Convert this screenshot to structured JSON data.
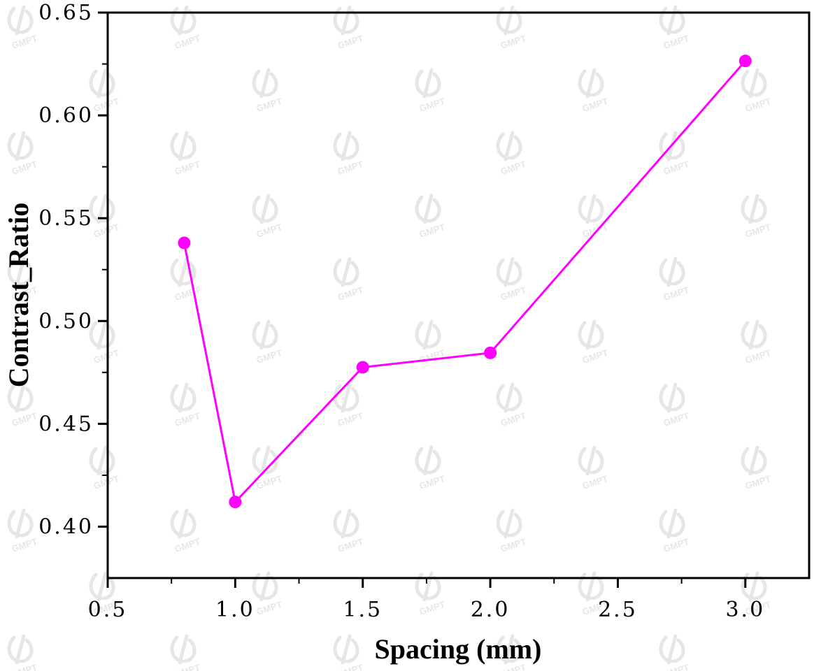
{
  "chart_data": {
    "type": "line",
    "xlabel": "Spacing (mm)",
    "ylabel": "Contrast_Ratio",
    "xlim": [
      0.5,
      3.25
    ],
    "ylim": [
      0.375,
      0.65
    ],
    "x_ticks": [
      "0.5",
      "1.0",
      "1.5",
      "2.0",
      "2.5",
      "3.0"
    ],
    "y_ticks": [
      "0.40",
      "0.45",
      "0.50",
      "0.55",
      "0.60",
      "0.65"
    ],
    "grid": false,
    "series": [
      {
        "color": "#ff00ff",
        "marker": "circle",
        "x": [
          0.8,
          1.0,
          1.5,
          2.0,
          3.0
        ],
        "y": [
          0.538,
          0.412,
          0.4775,
          0.4845,
          0.6265
        ]
      }
    ]
  },
  "watermark": {
    "text": "GMPT",
    "color": "#e6e6e6"
  }
}
